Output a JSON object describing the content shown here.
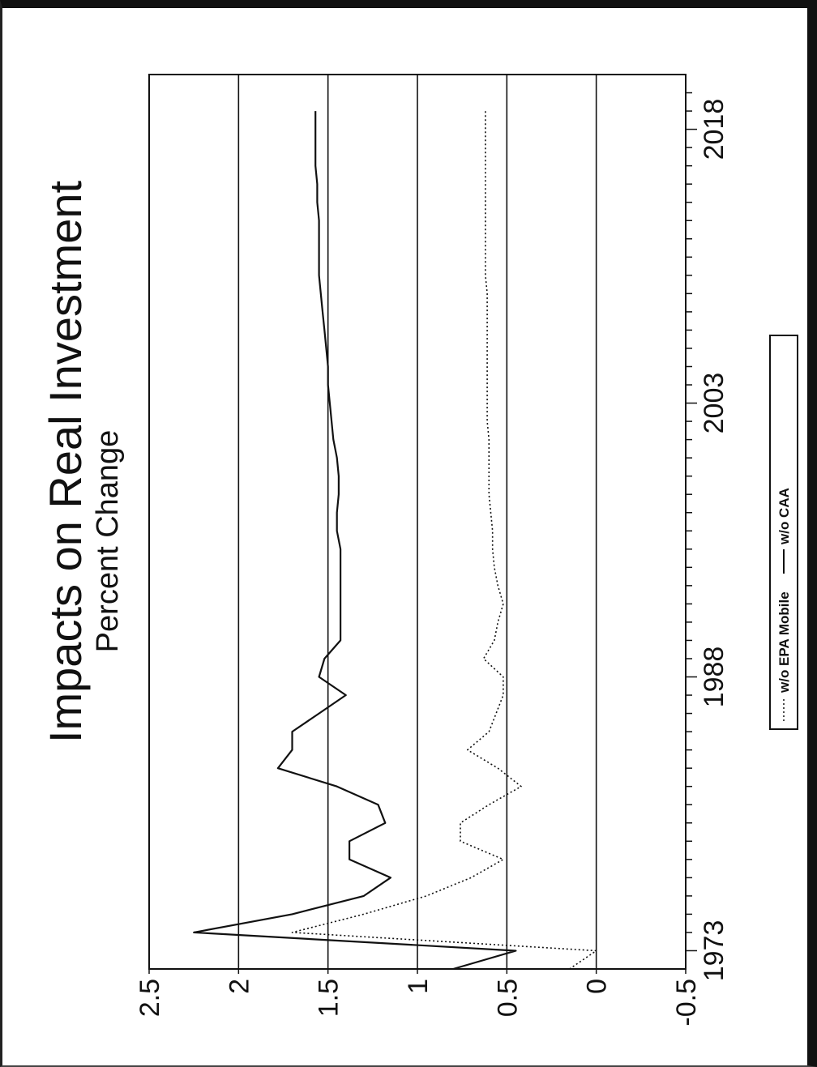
{
  "chart_data": {
    "type": "line",
    "title": "Impacts on Real Investment",
    "subtitle": "Percent Change",
    "xlabel": "",
    "ylabel": "",
    "xlim": [
      1972,
      2021
    ],
    "ylim": [
      -0.5,
      2.5
    ],
    "y_ticks": [
      "2.5",
      "2",
      "1.5",
      "1",
      "0.5",
      "0",
      "-0.5"
    ],
    "y_tick_values": [
      2.5,
      2,
      1.5,
      1,
      0.5,
      0,
      -0.5
    ],
    "x_ticks": [
      "1973",
      "1988",
      "2003",
      "2018"
    ],
    "x_tick_values": [
      1973,
      1988,
      2003,
      2018
    ],
    "grid": true,
    "legend_position": "right",
    "series": [
      {
        "name": "w/o EPA Mobile",
        "style": "dotted",
        "color": "#111111",
        "x": [
          1972,
          1973,
          1974,
          1975,
          1976,
          1977,
          1978,
          1979,
          1980,
          1981,
          1982,
          1983,
          1984,
          1985,
          1986,
          1987,
          1988,
          1989,
          1990,
          1991,
          1992,
          1993,
          1994,
          1995,
          1996,
          1997,
          1998,
          1999,
          2000,
          2001,
          2002,
          2003,
          2004,
          2005,
          2006,
          2007,
          2008,
          2009,
          2010,
          2011,
          2012,
          2013,
          2014,
          2015,
          2016,
          2017,
          2018,
          2019
        ],
        "values": [
          0.15,
          0.0,
          1.7,
          1.3,
          0.95,
          0.7,
          0.52,
          0.76,
          0.76,
          0.6,
          0.42,
          0.55,
          0.72,
          0.6,
          0.56,
          0.52,
          0.52,
          0.63,
          0.57,
          0.55,
          0.52,
          0.55,
          0.57,
          0.58,
          0.58,
          0.59,
          0.6,
          0.6,
          0.6,
          0.6,
          0.61,
          0.61,
          0.61,
          0.61,
          0.61,
          0.61,
          0.61,
          0.61,
          0.62,
          0.62,
          0.62,
          0.62,
          0.62,
          0.62,
          0.62,
          0.62,
          0.62,
          0.62
        ]
      },
      {
        "name": "w/o CAA",
        "style": "solid",
        "color": "#111111",
        "x": [
          1972,
          1973,
          1974,
          1975,
          1976,
          1977,
          1978,
          1979,
          1980,
          1981,
          1982,
          1983,
          1984,
          1985,
          1986,
          1987,
          1988,
          1989,
          1990,
          1991,
          1992,
          1993,
          1994,
          1995,
          1996,
          1997,
          1998,
          1999,
          2000,
          2001,
          2002,
          2003,
          2004,
          2005,
          2006,
          2007,
          2008,
          2009,
          2010,
          2011,
          2012,
          2013,
          2014,
          2015,
          2016,
          2017,
          2018,
          2019
        ],
        "values": [
          0.8,
          0.45,
          2.25,
          1.7,
          1.3,
          1.15,
          1.38,
          1.38,
          1.18,
          1.22,
          1.45,
          1.78,
          1.7,
          1.7,
          1.55,
          1.4,
          1.55,
          1.52,
          1.43,
          1.43,
          1.43,
          1.43,
          1.43,
          1.43,
          1.45,
          1.45,
          1.44,
          1.44,
          1.45,
          1.47,
          1.48,
          1.49,
          1.5,
          1.5,
          1.51,
          1.52,
          1.53,
          1.54,
          1.55,
          1.55,
          1.55,
          1.55,
          1.56,
          1.56,
          1.57,
          1.57,
          1.57,
          1.57
        ]
      }
    ]
  }
}
